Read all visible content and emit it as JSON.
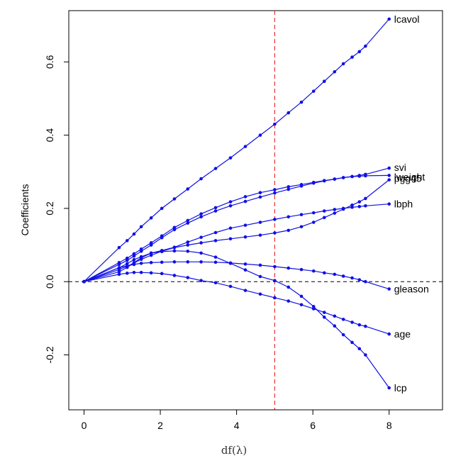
{
  "chart_data": {
    "type": "line",
    "title": "",
    "xlabel": "df(λ)",
    "ylabel": "Coefficients",
    "xlim": [
      -0.4,
      9.4
    ],
    "ylim": [
      -0.35,
      0.74
    ],
    "xticks": [
      "0",
      "2",
      "4",
      "6",
      "8"
    ],
    "yticks": [
      "-0.2",
      "0.0",
      "0.2",
      "0.4",
      "0.6"
    ],
    "hline_y": 0,
    "vline_x": 5,
    "colors": {
      "series": "#1010e6",
      "vline": "#e8343a",
      "hline": "#000000"
    },
    "x": [
      0,
      0.92,
      1.13,
      1.31,
      1.5,
      1.76,
      2.04,
      2.37,
      2.72,
      3.07,
      3.45,
      3.84,
      4.23,
      4.62,
      5.0,
      5.36,
      5.7,
      6.02,
      6.3,
      6.57,
      6.8,
      7.03,
      7.22,
      7.38,
      8.0
    ],
    "series": [
      {
        "name": "lcavol",
        "values": [
          0,
          0.093,
          0.112,
          0.13,
          0.15,
          0.174,
          0.2,
          0.226,
          0.253,
          0.281,
          0.309,
          0.338,
          0.369,
          0.4,
          0.43,
          0.461,
          0.49,
          0.52,
          0.547,
          0.573,
          0.595,
          0.613,
          0.628,
          0.643,
          0.717
        ]
      },
      {
        "name": "svi",
        "values": [
          0,
          0.052,
          0.064,
          0.076,
          0.089,
          0.106,
          0.125,
          0.148,
          0.167,
          0.185,
          0.202,
          0.218,
          0.232,
          0.243,
          0.251,
          0.259,
          0.265,
          0.271,
          0.276,
          0.28,
          0.284,
          0.287,
          0.29,
          0.293,
          0.31
        ]
      },
      {
        "name": "lweight",
        "values": [
          0,
          0.047,
          0.058,
          0.07,
          0.083,
          0.1,
          0.12,
          0.142,
          0.16,
          0.177,
          0.193,
          0.207,
          0.219,
          0.231,
          0.242,
          0.252,
          0.261,
          0.269,
          0.275,
          0.28,
          0.284,
          0.287,
          0.288,
          0.289,
          0.29
        ]
      },
      {
        "name": "pgg45",
        "values": [
          0,
          0.033,
          0.042,
          0.051,
          0.061,
          0.072,
          0.083,
          0.093,
          0.1,
          0.106,
          0.112,
          0.117,
          0.122,
          0.127,
          0.133,
          0.14,
          0.15,
          0.162,
          0.175,
          0.187,
          0.198,
          0.209,
          0.218,
          0.227,
          0.278
        ]
      },
      {
        "name": "lbph",
        "values": [
          0,
          0.038,
          0.049,
          0.06,
          0.068,
          0.078,
          0.085,
          0.094,
          0.108,
          0.121,
          0.134,
          0.146,
          0.154,
          0.162,
          0.17,
          0.177,
          0.183,
          0.188,
          0.193,
          0.197,
          0.2,
          0.203,
          0.205,
          0.207,
          0.212
        ]
      },
      {
        "name": "gleason",
        "values": [
          0,
          0.038,
          0.043,
          0.047,
          0.05,
          0.052,
          0.053,
          0.054,
          0.054,
          0.054,
          0.053,
          0.051,
          0.048,
          0.045,
          0.041,
          0.037,
          0.033,
          0.029,
          0.024,
          0.02,
          0.015,
          0.01,
          0.005,
          0.0,
          -0.02
        ]
      },
      {
        "name": "age",
        "values": [
          0,
          0.02,
          0.023,
          0.025,
          0.025,
          0.024,
          0.022,
          0.017,
          0.011,
          0.003,
          -0.003,
          -0.013,
          -0.024,
          -0.034,
          -0.044,
          -0.053,
          -0.063,
          -0.074,
          -0.084,
          -0.094,
          -0.103,
          -0.111,
          -0.118,
          -0.122,
          -0.143
        ]
      },
      {
        "name": "lcp",
        "values": [
          0,
          0.027,
          0.039,
          0.052,
          0.065,
          0.078,
          0.082,
          0.084,
          0.083,
          0.078,
          0.067,
          0.05,
          0.032,
          0.014,
          0.003,
          -0.015,
          -0.04,
          -0.068,
          -0.097,
          -0.121,
          -0.145,
          -0.166,
          -0.183,
          -0.2,
          -0.29
        ]
      }
    ]
  }
}
